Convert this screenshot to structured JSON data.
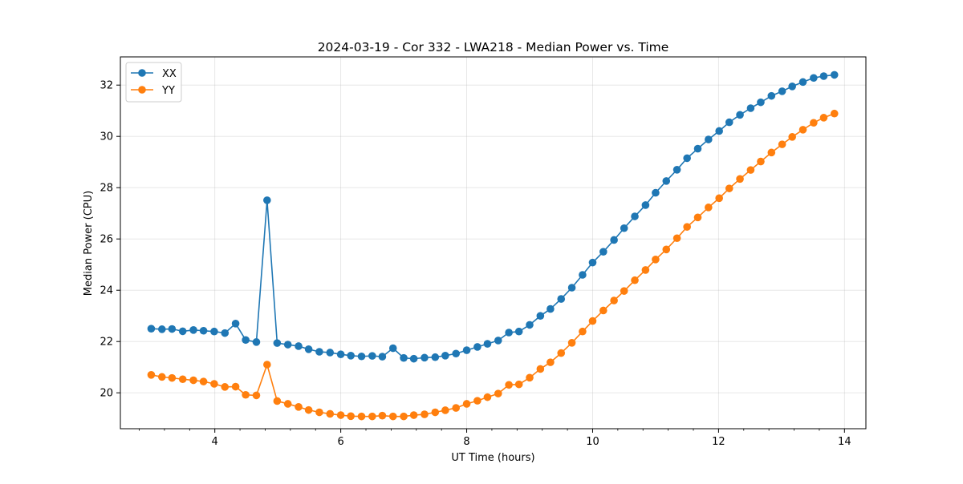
{
  "chart_data": {
    "type": "line",
    "title": "2024-03-19 - Cor 332 - LWA218 - Median Power vs. Time",
    "xlabel": "UT Time (hours)",
    "ylabel": "Median Power (CPU)",
    "xlim": [
      2.5,
      14.34
    ],
    "ylim": [
      18.6,
      33.1
    ],
    "xticks": [
      4,
      6,
      8,
      10,
      12,
      14
    ],
    "xminor_step": 0.4,
    "yticks": [
      20,
      22,
      24,
      26,
      28,
      30,
      32
    ],
    "grid": true,
    "legend": "upper-left",
    "x": [
      2.99,
      3.16,
      3.32,
      3.49,
      3.66,
      3.82,
      3.99,
      4.16,
      4.33,
      4.49,
      4.66,
      4.83,
      4.99,
      5.16,
      5.33,
      5.49,
      5.66,
      5.83,
      6.0,
      6.16,
      6.33,
      6.5,
      6.66,
      6.83,
      7.0,
      7.16,
      7.33,
      7.5,
      7.66,
      7.83,
      8.0,
      8.17,
      8.33,
      8.5,
      8.67,
      8.83,
      9.0,
      9.17,
      9.33,
      9.5,
      9.67,
      9.84,
      10.0,
      10.17,
      10.34,
      10.5,
      10.67,
      10.84,
      11.0,
      11.17,
      11.34,
      11.5,
      11.67,
      11.84,
      12.01,
      12.17,
      12.34,
      12.51,
      12.67,
      12.84,
      13.01,
      13.17,
      13.34,
      13.51,
      13.67,
      13.84
    ],
    "series": [
      {
        "name": "XX",
        "color": "#1f77b4",
        "values": [
          22.5,
          22.48,
          22.49,
          22.4,
          22.45,
          22.42,
          22.39,
          22.33,
          22.7,
          22.06,
          21.98,
          27.51,
          21.94,
          21.88,
          21.82,
          21.7,
          21.6,
          21.57,
          21.5,
          21.45,
          21.42,
          21.44,
          21.41,
          21.74,
          21.36,
          21.33,
          21.37,
          21.39,
          21.45,
          21.53,
          21.66,
          21.79,
          21.91,
          22.04,
          22.35,
          22.39,
          22.65,
          23.0,
          23.27,
          23.66,
          24.1,
          24.6,
          25.08,
          25.5,
          25.96,
          26.42,
          26.88,
          27.32,
          27.8,
          28.26,
          28.7,
          29.15,
          29.52,
          29.88,
          30.21,
          30.55,
          30.84,
          31.1,
          31.33,
          31.58,
          31.76,
          31.95,
          32.12,
          32.28,
          32.35,
          32.4
        ]
      },
      {
        "name": "YY",
        "color": "#ff7f0e",
        "values": [
          20.7,
          20.62,
          20.58,
          20.53,
          20.49,
          20.44,
          20.35,
          20.23,
          20.24,
          19.92,
          19.9,
          21.1,
          19.68,
          19.57,
          19.45,
          19.33,
          19.24,
          19.18,
          19.13,
          19.09,
          19.08,
          19.08,
          19.11,
          19.08,
          19.08,
          19.13,
          19.16,
          19.24,
          19.32,
          19.41,
          19.57,
          19.69,
          19.83,
          19.97,
          20.31,
          20.33,
          20.59,
          20.93,
          21.19,
          21.55,
          21.95,
          22.39,
          22.8,
          23.21,
          23.6,
          23.97,
          24.39,
          24.79,
          25.2,
          25.59,
          26.03,
          26.47,
          26.84,
          27.23,
          27.59,
          27.97,
          28.34,
          28.69,
          29.02,
          29.37,
          29.69,
          29.98,
          30.26,
          30.53,
          30.73,
          30.89
        ]
      }
    ]
  }
}
